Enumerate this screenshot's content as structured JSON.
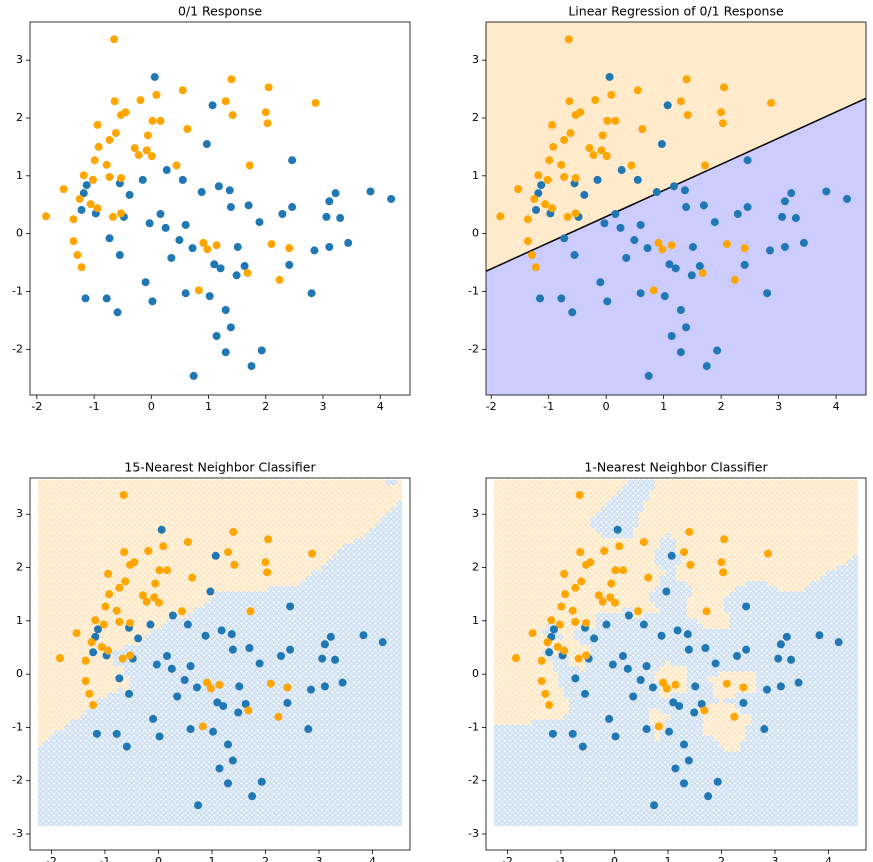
{
  "chart_data": [
    {
      "type": "scatter",
      "title": "0/1 Response",
      "xlim": [
        -2.12,
        4.52
      ],
      "ylim": [
        -2.79,
        3.66
      ],
      "xticks": [
        -2,
        -1,
        0,
        1,
        2,
        3,
        4
      ],
      "yticks": [
        -2,
        -1,
        0,
        1,
        2,
        3
      ],
      "series": [
        {
          "color": "#1f77b4",
          "x": [
            0.06,
            1.07,
            0.97,
            2.46,
            4.19,
            3.83,
            3.22,
            3.11,
            3.3,
            3.44,
            3.06,
            3.11,
            2.85,
            2.8,
            2.46,
            2.29,
            1.89,
            1.51,
            1.63,
            2.41,
            1.93,
            1.75,
            0.74,
            1.3,
            1.14,
            1.39,
            1.3,
            1.02,
            0.6,
            0.02,
            -0.59,
            -0.78,
            -1.15,
            -0.1,
            0.6,
            0.49,
            0.25,
            0.16,
            -0.03,
            -0.48,
            -0.73,
            -0.97,
            -1.18,
            -1.22,
            -1.13,
            -0.55,
            -0.38,
            -0.15,
            0.27,
            0.55,
            0.88,
            1.18,
            1.37,
            1.39,
            1.7,
            1.1,
            1.21,
            1.49,
            -0.55,
            0.72,
            0.35
          ],
          "values": [
            2.71,
            2.22,
            1.55,
            1.27,
            0.6,
            0.73,
            0.7,
            0.56,
            0.27,
            -0.16,
            0.29,
            -0.23,
            -0.29,
            -1.03,
            0.46,
            0.34,
            0.2,
            -0.23,
            -0.56,
            -0.54,
            -2.02,
            -2.29,
            -2.46,
            -2.05,
            -1.77,
            -1.62,
            -1.32,
            -1.08,
            -1.03,
            -1.17,
            -1.36,
            -1.12,
            -1.12,
            -0.84,
            0.15,
            -0.11,
            0.1,
            0.34,
            0.18,
            0.29,
            -0.08,
            0.35,
            0.7,
            0.41,
            0.84,
            0.87,
            0.67,
            0.93,
            1.1,
            0.93,
            0.72,
            0.82,
            0.75,
            0.46,
            0.49,
            -0.53,
            -0.6,
            -0.72,
            -0.37,
            -0.25,
            -0.42
          ]
        },
        {
          "color": "orange",
          "x": [
            -0.65,
            -1.84,
            2.05,
            2.87,
            1.4,
            0.55,
            0.09,
            -0.19,
            -0.64,
            2.0,
            2.03,
            1.3,
            1.42,
            0.63,
            -0.45,
            -0.53,
            -0.94,
            -0.62,
            -0.73,
            -0.06,
            0.02,
            0.16,
            -0.29,
            -0.22,
            -0.08,
            0.01,
            -0.92,
            -0.99,
            -0.78,
            -0.53,
            -0.73,
            -1.02,
            -1.18,
            -1.53,
            -1.25,
            -1.06,
            -0.94,
            -1.36,
            -1.36,
            -1.29,
            -1.22,
            0.91,
            0.98,
            1.14,
            1.68,
            2.1,
            2.24,
            2.41,
            1.72,
            0.83,
            -0.53,
            -0.67,
            0.44
          ],
          "values": [
            3.36,
            0.3,
            2.53,
            2.26,
            2.67,
            2.48,
            2.4,
            2.31,
            2.29,
            2.1,
            1.91,
            2.29,
            2.05,
            1.81,
            2.1,
            2.05,
            1.88,
            1.74,
            1.62,
            1.7,
            1.95,
            1.95,
            1.48,
            1.36,
            1.44,
            1.34,
            1.5,
            1.27,
            1.19,
            0.96,
            0.98,
            0.93,
            1.01,
            0.77,
            0.6,
            0.51,
            0.44,
            0.25,
            -0.13,
            -0.37,
            -0.58,
            -0.16,
            -0.27,
            -0.2,
            -0.68,
            -0.18,
            -0.8,
            -0.25,
            1.18,
            -0.98,
            0.35,
            0.29,
            1.18
          ]
        }
      ]
    },
    {
      "type": "scatter",
      "title": "Linear Regression of 0/1 Response",
      "xlim": [
        -2.09,
        4.52
      ],
      "ylim": [
        -2.79,
        3.66
      ],
      "xticks": [
        -2,
        -1,
        0,
        1,
        2,
        3,
        4
      ],
      "yticks": [
        -2,
        -1,
        0,
        1,
        2,
        3
      ],
      "line": {
        "color": "black",
        "x": [
          -2.09,
          4.52
        ],
        "values": [
          -0.65,
          2.34
        ]
      },
      "region_colors": {
        "above": "#ffebcc",
        "below": "#ccccff"
      },
      "series": [
        {
          "color": "#1f77b4",
          "x": [
            0.06,
            1.07,
            0.97,
            2.46,
            4.19,
            3.83,
            3.22,
            3.11,
            3.3,
            3.44,
            3.06,
            3.11,
            2.85,
            2.8,
            2.46,
            2.29,
            1.89,
            1.51,
            1.63,
            2.41,
            1.93,
            1.75,
            0.74,
            1.3,
            1.14,
            1.39,
            1.3,
            1.02,
            0.6,
            0.02,
            -0.59,
            -0.78,
            -1.15,
            -0.1,
            0.6,
            0.49,
            0.25,
            0.16,
            -0.03,
            -0.48,
            -0.73,
            -0.97,
            -1.18,
            -1.22,
            -1.13,
            -0.55,
            -0.38,
            -0.15,
            0.27,
            0.55,
            0.88,
            1.18,
            1.37,
            1.39,
            1.7,
            1.1,
            1.21,
            1.49,
            -0.55,
            0.72,
            0.35
          ],
          "values": [
            2.71,
            2.22,
            1.55,
            1.27,
            0.6,
            0.73,
            0.7,
            0.56,
            0.27,
            -0.16,
            0.29,
            -0.23,
            -0.29,
            -1.03,
            0.46,
            0.34,
            0.2,
            -0.23,
            -0.56,
            -0.54,
            -2.02,
            -2.29,
            -2.46,
            -2.05,
            -1.77,
            -1.62,
            -1.32,
            -1.08,
            -1.03,
            -1.17,
            -1.36,
            -1.12,
            -1.12,
            -0.84,
            0.15,
            -0.11,
            0.1,
            0.34,
            0.18,
            0.29,
            -0.08,
            0.35,
            0.7,
            0.41,
            0.84,
            0.87,
            0.67,
            0.93,
            1.1,
            0.93,
            0.72,
            0.82,
            0.75,
            0.46,
            0.49,
            -0.53,
            -0.6,
            -0.72,
            -0.37,
            -0.25,
            -0.42
          ]
        },
        {
          "color": "orange",
          "x": [
            -0.65,
            -1.84,
            2.05,
            2.87,
            1.4,
            0.55,
            0.09,
            -0.19,
            -0.64,
            2.0,
            2.03,
            1.3,
            1.42,
            0.63,
            -0.45,
            -0.53,
            -0.94,
            -0.62,
            -0.73,
            -0.06,
            0.02,
            0.16,
            -0.29,
            -0.22,
            -0.08,
            0.01,
            -0.92,
            -0.99,
            -0.78,
            -0.53,
            -0.73,
            -1.02,
            -1.18,
            -1.53,
            -1.25,
            -1.06,
            -0.94,
            -1.36,
            -1.36,
            -1.29,
            -1.22,
            0.91,
            0.98,
            1.14,
            1.68,
            2.1,
            2.24,
            2.41,
            1.72,
            0.83,
            -0.53,
            -0.67,
            0.44
          ],
          "values": [
            3.36,
            0.3,
            2.53,
            2.26,
            2.67,
            2.48,
            2.4,
            2.31,
            2.29,
            2.1,
            1.91,
            2.29,
            2.05,
            1.81,
            2.1,
            2.05,
            1.88,
            1.74,
            1.62,
            1.7,
            1.95,
            1.95,
            1.48,
            1.36,
            1.44,
            1.34,
            1.5,
            1.27,
            1.19,
            0.96,
            0.98,
            0.93,
            1.01,
            0.77,
            0.6,
            0.51,
            0.44,
            0.25,
            -0.13,
            -0.37,
            -0.58,
            -0.16,
            -0.27,
            -0.2,
            -0.68,
            -0.18,
            -0.8,
            -0.25,
            1.18,
            -0.98,
            0.35,
            0.29,
            1.18
          ]
        }
      ]
    },
    {
      "type": "scatter",
      "title": "15-Nearest Neighbor Classifier",
      "k": 15,
      "mesh": {
        "xlim": [
          -2.2,
          4.5
        ],
        "ylim": [
          -2.8,
          3.6
        ],
        "step": 0.1
      },
      "mesh_colors": [
        "#c6dbef",
        "#fde3b8"
      ],
      "xlim": [
        -2.4,
        4.7
      ],
      "ylim": [
        -3.3,
        3.68
      ],
      "xticks": [
        -2,
        -1,
        0,
        1,
        2,
        3,
        4
      ],
      "yticks": [
        -3,
        -2,
        -1,
        0,
        1,
        2,
        3
      ],
      "series": [
        {
          "color": "#1f77b4",
          "x": [
            0.06,
            1.07,
            0.97,
            2.46,
            4.19,
            3.83,
            3.22,
            3.11,
            3.3,
            3.44,
            3.06,
            3.11,
            2.85,
            2.8,
            2.46,
            2.29,
            1.89,
            1.51,
            1.63,
            2.41,
            1.93,
            1.75,
            0.74,
            1.3,
            1.14,
            1.39,
            1.3,
            1.02,
            0.6,
            0.02,
            -0.59,
            -0.78,
            -1.15,
            -0.1,
            0.6,
            0.49,
            0.25,
            0.16,
            -0.03,
            -0.48,
            -0.73,
            -0.97,
            -1.18,
            -1.22,
            -1.13,
            -0.55,
            -0.38,
            -0.15,
            0.27,
            0.55,
            0.88,
            1.18,
            1.37,
            1.39,
            1.7,
            1.1,
            1.21,
            1.49,
            -0.55,
            0.72,
            0.35
          ],
          "values": [
            2.71,
            2.22,
            1.55,
            1.27,
            0.6,
            0.73,
            0.7,
            0.56,
            0.27,
            -0.16,
            0.29,
            -0.23,
            -0.29,
            -1.03,
            0.46,
            0.34,
            0.2,
            -0.23,
            -0.56,
            -0.54,
            -2.02,
            -2.29,
            -2.46,
            -2.05,
            -1.77,
            -1.62,
            -1.32,
            -1.08,
            -1.03,
            -1.17,
            -1.36,
            -1.12,
            -1.12,
            -0.84,
            0.15,
            -0.11,
            0.1,
            0.34,
            0.18,
            0.29,
            -0.08,
            0.35,
            0.7,
            0.41,
            0.84,
            0.87,
            0.67,
            0.93,
            1.1,
            0.93,
            0.72,
            0.82,
            0.75,
            0.46,
            0.49,
            -0.53,
            -0.6,
            -0.72,
            -0.37,
            -0.25,
            -0.42
          ]
        },
        {
          "color": "orange",
          "x": [
            -0.65,
            -1.84,
            2.05,
            2.87,
            1.4,
            0.55,
            0.09,
            -0.19,
            -0.64,
            2.0,
            2.03,
            1.3,
            1.42,
            0.63,
            -0.45,
            -0.53,
            -0.94,
            -0.62,
            -0.73,
            -0.06,
            0.02,
            0.16,
            -0.29,
            -0.22,
            -0.08,
            0.01,
            -0.92,
            -0.99,
            -0.78,
            -0.53,
            -0.73,
            -1.02,
            -1.18,
            -1.53,
            -1.25,
            -1.06,
            -0.94,
            -1.36,
            -1.36,
            -1.29,
            -1.22,
            0.91,
            0.98,
            1.14,
            1.68,
            2.1,
            2.24,
            2.41,
            1.72,
            0.83,
            -0.53,
            -0.67,
            0.44
          ],
          "values": [
            3.36,
            0.3,
            2.53,
            2.26,
            2.67,
            2.48,
            2.4,
            2.31,
            2.29,
            2.1,
            1.91,
            2.29,
            2.05,
            1.81,
            2.1,
            2.05,
            1.88,
            1.74,
            1.62,
            1.7,
            1.95,
            1.95,
            1.48,
            1.36,
            1.44,
            1.34,
            1.5,
            1.27,
            1.19,
            0.96,
            0.98,
            0.93,
            1.01,
            0.77,
            0.6,
            0.51,
            0.44,
            0.25,
            -0.13,
            -0.37,
            -0.58,
            -0.16,
            -0.27,
            -0.2,
            -0.68,
            -0.18,
            -0.8,
            -0.25,
            1.18,
            -0.98,
            0.35,
            0.29,
            1.18
          ]
        }
      ]
    },
    {
      "type": "scatter",
      "title": "1-Nearest Neighbor Classifier",
      "k": 1,
      "mesh": {
        "xlim": [
          -2.2,
          4.5
        ],
        "ylim": [
          -2.8,
          3.6
        ],
        "step": 0.1
      },
      "mesh_colors": [
        "#c6dbef",
        "#fde3b8"
      ],
      "xlim": [
        -2.4,
        4.7
      ],
      "ylim": [
        -3.3,
        3.68
      ],
      "xticks": [
        -2,
        -1,
        0,
        1,
        2,
        3,
        4
      ],
      "yticks": [
        -3,
        -2,
        -1,
        0,
        1,
        2,
        3
      ],
      "series": [
        {
          "color": "#1f77b4",
          "x": [
            0.06,
            1.07,
            0.97,
            2.46,
            4.19,
            3.83,
            3.22,
            3.11,
            3.3,
            3.44,
            3.06,
            3.11,
            2.85,
            2.8,
            2.46,
            2.29,
            1.89,
            1.51,
            1.63,
            2.41,
            1.93,
            1.75,
            0.74,
            1.3,
            1.14,
            1.39,
            1.3,
            1.02,
            0.6,
            0.02,
            -0.59,
            -0.78,
            -1.15,
            -0.1,
            0.6,
            0.49,
            0.25,
            0.16,
            -0.03,
            -0.48,
            -0.73,
            -0.97,
            -1.18,
            -1.22,
            -1.13,
            -0.55,
            -0.38,
            -0.15,
            0.27,
            0.55,
            0.88,
            1.18,
            1.37,
            1.39,
            1.7,
            1.1,
            1.21,
            1.49,
            -0.55,
            0.72,
            0.35
          ],
          "values": [
            2.71,
            2.22,
            1.55,
            1.27,
            0.6,
            0.73,
            0.7,
            0.56,
            0.27,
            -0.16,
            0.29,
            -0.23,
            -0.29,
            -1.03,
            0.46,
            0.34,
            0.2,
            -0.23,
            -0.56,
            -0.54,
            -2.02,
            -2.29,
            -2.46,
            -2.05,
            -1.77,
            -1.62,
            -1.32,
            -1.08,
            -1.03,
            -1.17,
            -1.36,
            -1.12,
            -1.12,
            -0.84,
            0.15,
            -0.11,
            0.1,
            0.34,
            0.18,
            0.29,
            -0.08,
            0.35,
            0.7,
            0.41,
            0.84,
            0.87,
            0.67,
            0.93,
            1.1,
            0.93,
            0.72,
            0.82,
            0.75,
            0.46,
            0.49,
            -0.53,
            -0.6,
            -0.72,
            -0.37,
            -0.25,
            -0.42
          ]
        },
        {
          "color": "orange",
          "x": [
            -0.65,
            -1.84,
            2.05,
            2.87,
            1.4,
            0.55,
            0.09,
            -0.19,
            -0.64,
            2.0,
            2.03,
            1.3,
            1.42,
            0.63,
            -0.45,
            -0.53,
            -0.94,
            -0.62,
            -0.73,
            -0.06,
            0.02,
            0.16,
            -0.29,
            -0.22,
            -0.08,
            0.01,
            -0.92,
            -0.99,
            -0.78,
            -0.53,
            -0.73,
            -1.02,
            -1.18,
            -1.53,
            -1.25,
            -1.06,
            -0.94,
            -1.36,
            -1.36,
            -1.29,
            -1.22,
            0.91,
            0.98,
            1.14,
            1.68,
            2.1,
            2.24,
            2.41,
            1.72,
            0.83,
            -0.53,
            -0.67,
            0.44
          ],
          "values": [
            3.36,
            0.3,
            2.53,
            2.26,
            2.67,
            2.48,
            2.4,
            2.31,
            2.29,
            2.1,
            1.91,
            2.29,
            2.05,
            1.81,
            2.1,
            2.05,
            1.88,
            1.74,
            1.62,
            1.7,
            1.95,
            1.95,
            1.48,
            1.36,
            1.44,
            1.34,
            1.5,
            1.27,
            1.19,
            0.96,
            0.98,
            0.93,
            1.01,
            0.77,
            0.6,
            0.51,
            0.44,
            0.25,
            -0.13,
            -0.37,
            -0.58,
            -0.16,
            -0.27,
            -0.2,
            -0.68,
            -0.18,
            -0.8,
            -0.25,
            1.18,
            -0.98,
            0.35,
            0.29,
            1.18
          ]
        }
      ]
    }
  ]
}
